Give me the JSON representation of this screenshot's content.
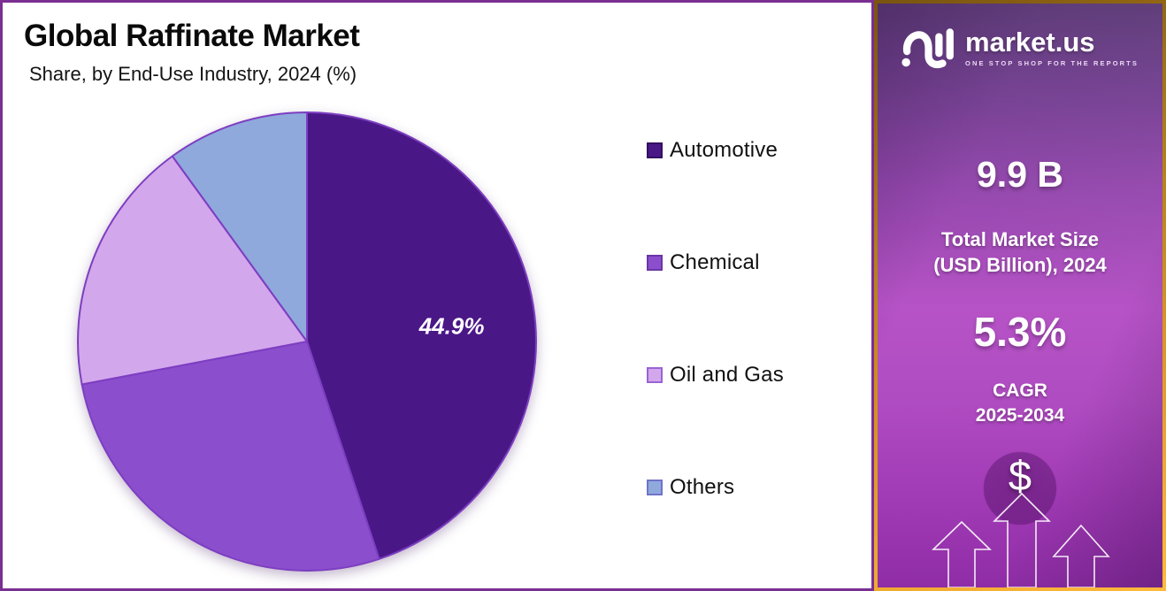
{
  "header": {
    "title": "Global Raffinate Market",
    "subtitle": "Share, by End-Use Industry, 2024 (%)"
  },
  "chart_data": {
    "type": "pie",
    "title": "Global Raffinate Market",
    "subtitle": "Share, by End-Use Industry, 2024 (%)",
    "unit": "%",
    "year": "2024",
    "labels": [
      "Automotive",
      "Chemical",
      "Oil and Gas",
      "Others"
    ],
    "values": [
      44.9,
      27.1,
      18.0,
      10.0
    ],
    "value_labels_shown": [
      "44.9%",
      "",
      "",
      ""
    ],
    "colors": [
      "#4a1787",
      "#8b4fce",
      "#d3a7ec",
      "#8fa9dc"
    ],
    "slice_border_color": "#7d3ec1",
    "start_angle_deg": 0,
    "direction": "clockwise",
    "legend_position": "right",
    "data_label_color": "#ffffff"
  },
  "legend": {
    "swatch_colors": [
      "#4a1787",
      "#8b4fce",
      "#d3a7ec",
      "#8fa9dc"
    ],
    "swatch_border_colors": [
      "#33105f",
      "#6a36a4",
      "#9a63d2",
      "#6f74c9"
    ]
  },
  "sidebar": {
    "brand": "market.us",
    "tagline": "ONE STOP SHOP FOR THE REPORTS",
    "stats": [
      {
        "value": "9.9 B",
        "label_line1": "Total Market Size",
        "label_line2": "(USD Billion), 2024"
      },
      {
        "value": "5.3%",
        "label_line1": "CAGR",
        "label_line2": "2025-2034"
      }
    ],
    "dollar_symbol": "$",
    "colors": {
      "panel_top": "#543070",
      "panel_mid": "#b653c6",
      "panel_bottom": "#8f2da6",
      "gold_border": "#d4931f",
      "chart_border": "#7b2f92"
    }
  }
}
